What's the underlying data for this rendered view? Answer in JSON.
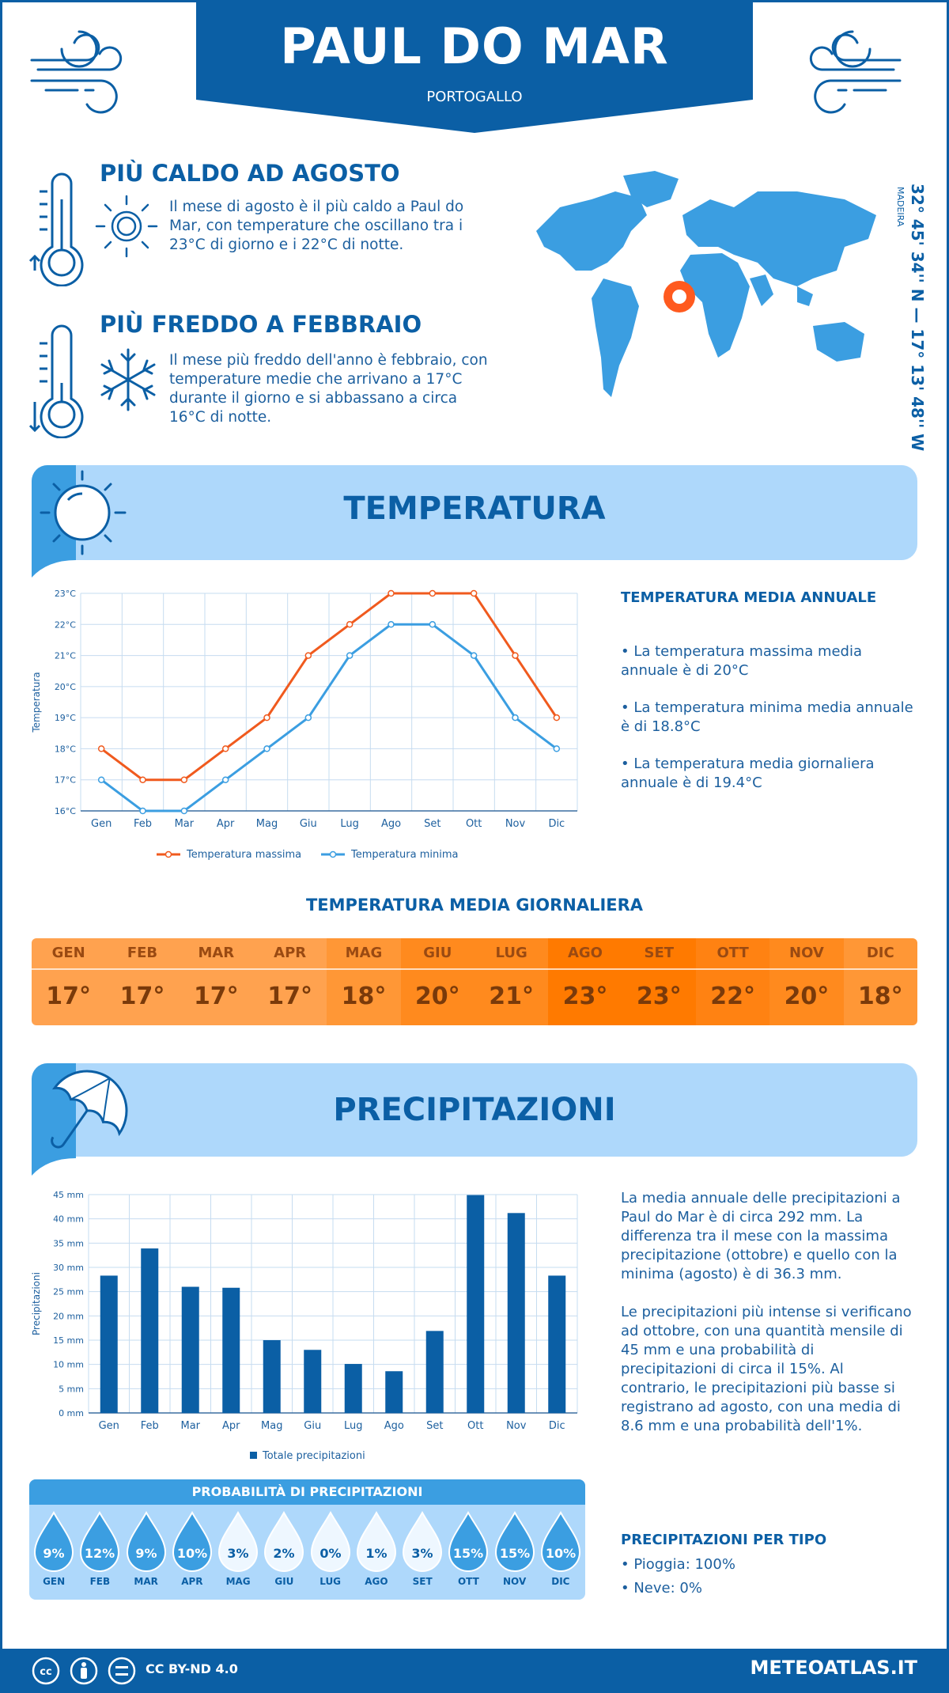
{
  "header": {
    "title": "PAUL DO MAR",
    "country": "PORTOGALLO"
  },
  "facts": {
    "hot_title": "PIÙ CALDO AD AGOSTO",
    "hot_text": "Il mese di agosto è il più caldo a Paul do Mar, con temperature che oscillano tra i 23°C di giorno e i 22°C di notte.",
    "cold_title": "PIÙ FREDDO A FEBBRAIO",
    "cold_text": "Il mese più freddo dell'anno è febbraio, con temperature medie che arrivano a 17°C durante il giorno e si abbassano a circa 16°C di notte."
  },
  "location": {
    "coords": "32° 45' 34'' N — 17° 13' 48'' W",
    "region": "MADEIRA"
  },
  "temperature_section": {
    "title": "TEMPERATURA",
    "side_title": "TEMPERATURA MEDIA ANNUALE",
    "bullets": [
      "• La temperatura massima media annuale è di 20°C",
      "• La temperatura minima media annuale è di 18.8°C",
      "• La temperatura media giornaliera annuale è di 19.4°C"
    ]
  },
  "daily": {
    "title": "TEMPERATURA MEDIA GIORNALIERA",
    "months": [
      "GEN",
      "FEB",
      "MAR",
      "APR",
      "MAG",
      "GIU",
      "LUG",
      "AGO",
      "SET",
      "OTT",
      "NOV",
      "DIC"
    ],
    "values": [
      "17°",
      "17°",
      "17°",
      "17°",
      "18°",
      "20°",
      "21°",
      "23°",
      "23°",
      "22°",
      "20°",
      "18°"
    ],
    "colors": [
      "#ffa24f",
      "#ffa24f",
      "#ffa24f",
      "#ffa24f",
      "#ff9736",
      "#ff8a1e",
      "#ff8a1e",
      "#ff7a00",
      "#ff7a00",
      "#ff8212",
      "#ff8a1e",
      "#ff9736"
    ]
  },
  "precip_section": {
    "title": "PRECIPITAZIONI",
    "para1": "La media annuale delle precipitazioni a Paul do Mar è di circa 292 mm. La differenza tra il mese con la massima precipitazione (ottobre) e quello con la minima (agosto) è di 36.3 mm.",
    "para2": "Le precipitazioni più intense si verificano ad ottobre, con una quantità mensile di 45 mm e una probabilità di precipitazioni di circa il 15%. Al contrario, le precipitazioni più basse si registrano ad agosto, con una media di 8.6 mm e una probabilità dell'1%.",
    "type_title": "PRECIPITAZIONI PER TIPO",
    "types": [
      "• Pioggia: 100%",
      "• Neve: 0%"
    ]
  },
  "probability": {
    "title": "PROBABILITÀ DI PRECIPITAZIONI",
    "months": [
      "GEN",
      "FEB",
      "MAR",
      "APR",
      "MAG",
      "GIU",
      "LUG",
      "AGO",
      "SET",
      "OTT",
      "NOV",
      "DIC"
    ],
    "values": [
      "9%",
      "12%",
      "9%",
      "10%",
      "3%",
      "2%",
      "0%",
      "1%",
      "3%",
      "15%",
      "15%",
      "10%"
    ],
    "levels": [
      9,
      12,
      9,
      10,
      3,
      2,
      0,
      1,
      3,
      15,
      15,
      10
    ]
  },
  "chart_data": [
    {
      "type": "line",
      "title": "",
      "ylabel": "Temperatura",
      "categories": [
        "Gen",
        "Feb",
        "Mar",
        "Apr",
        "Mag",
        "Giu",
        "Lug",
        "Ago",
        "Set",
        "Ott",
        "Nov",
        "Dic"
      ],
      "yticks": [
        "16°C",
        "17°C",
        "18°C",
        "19°C",
        "20°C",
        "21°C",
        "22°C",
        "23°C"
      ],
      "ylim": [
        16,
        23
      ],
      "series": [
        {
          "name": "Temperatura massima",
          "color": "#f05a1e",
          "values": [
            18,
            17,
            17,
            18,
            19,
            21,
            22,
            23,
            23,
            23,
            21,
            19
          ]
        },
        {
          "name": "Temperatura minima",
          "color": "#3b9ee1",
          "values": [
            17,
            16,
            16,
            17,
            18,
            19,
            21,
            22,
            22,
            21,
            19,
            18
          ]
        }
      ],
      "legend": "bottom"
    },
    {
      "type": "bar",
      "title": "",
      "ylabel": "Precipitazioni",
      "categories": [
        "Gen",
        "Feb",
        "Mar",
        "Apr",
        "Mag",
        "Giu",
        "Lug",
        "Ago",
        "Set",
        "Ott",
        "Nov",
        "Dic"
      ],
      "yticks": [
        "0 mm",
        "5 mm",
        "10 mm",
        "15 mm",
        "20 mm",
        "25 mm",
        "30 mm",
        "35 mm",
        "40 mm",
        "45 mm"
      ],
      "ylim": [
        0,
        45
      ],
      "series": [
        {
          "name": "Totale precipitazioni",
          "color": "#0b5fa5",
          "values": [
            28.3,
            33.9,
            26.0,
            25.8,
            15.0,
            13.0,
            10.1,
            8.6,
            16.9,
            44.9,
            41.2,
            28.3
          ]
        }
      ],
      "legend": "bottom"
    }
  ],
  "footer": {
    "license": "CC BY-ND 4.0",
    "site": "METEOATLAS.IT"
  }
}
